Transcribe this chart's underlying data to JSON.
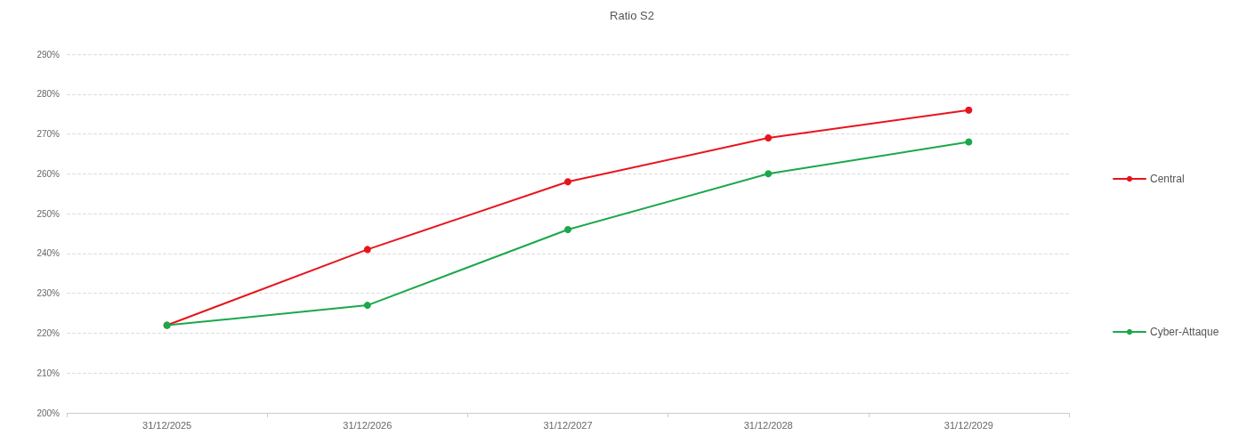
{
  "chart_data": {
    "type": "line",
    "title": "Ratio S2",
    "categories": [
      "31/12/2025",
      "31/12/2026",
      "31/12/2027",
      "31/12/2028",
      "31/12/2029"
    ],
    "series": [
      {
        "name": "Central",
        "color": "#e8141c",
        "values": [
          222,
          241,
          258,
          269,
          276
        ]
      },
      {
        "name": "Cyber-Attaque",
        "color": "#1aa84a",
        "values": [
          222,
          227,
          246,
          260,
          268
        ]
      }
    ],
    "ylim": [
      200,
      290
    ],
    "yticks": [
      {
        "value": 200,
        "label": "200%"
      },
      {
        "value": 210,
        "label": "210%"
      },
      {
        "value": 220,
        "label": "220%"
      },
      {
        "value": 230,
        "label": "230%"
      },
      {
        "value": 240,
        "label": "240%"
      },
      {
        "value": 250,
        "label": "250%"
      },
      {
        "value": 260,
        "label": "260%"
      },
      {
        "value": 270,
        "label": "270%"
      },
      {
        "value": 280,
        "label": "280%"
      },
      {
        "value": 290,
        "label": "290%"
      }
    ],
    "grid": "y",
    "legend": "right",
    "marker": "circle",
    "line_style": "solid"
  }
}
